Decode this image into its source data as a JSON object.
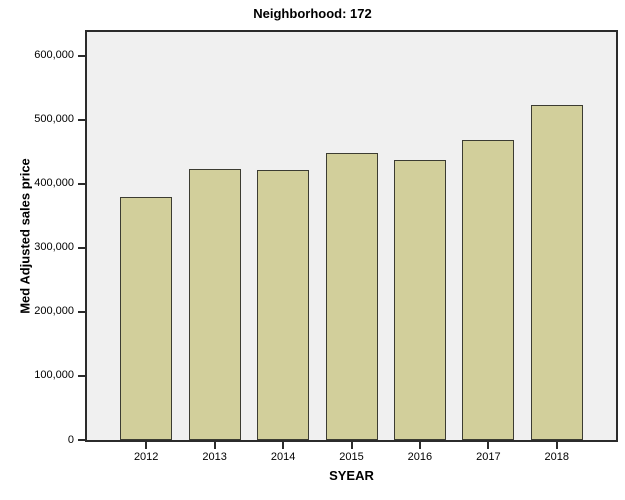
{
  "figure": {
    "title": "Neighborhood: 172"
  },
  "chart_data": {
    "type": "bar",
    "title": "Neighborhood: 172",
    "xlabel": "SYEAR",
    "ylabel": "Med Adjusted sales price",
    "categories": [
      "2012",
      "2013",
      "2014",
      "2015",
      "2016",
      "2017",
      "2018"
    ],
    "values": [
      380000,
      423000,
      422000,
      448000,
      437000,
      468000,
      523000
    ],
    "ylim": [
      0,
      637000
    ],
    "yticks": [
      0,
      100000,
      200000,
      300000,
      400000,
      500000,
      600000
    ],
    "ytick_labels": [
      "0",
      "100,000",
      "200,000",
      "300,000",
      "400,000",
      "500,000",
      "600,000"
    ],
    "grid": false,
    "legend": false,
    "colors": {
      "bar_fill": "#d2cf9b",
      "bar_border": "#3c3c32",
      "plot_bg": "#f0f0f0",
      "axis": "#2b2b2b",
      "text": "#000000",
      "page_bg": "#ffffff"
    }
  }
}
